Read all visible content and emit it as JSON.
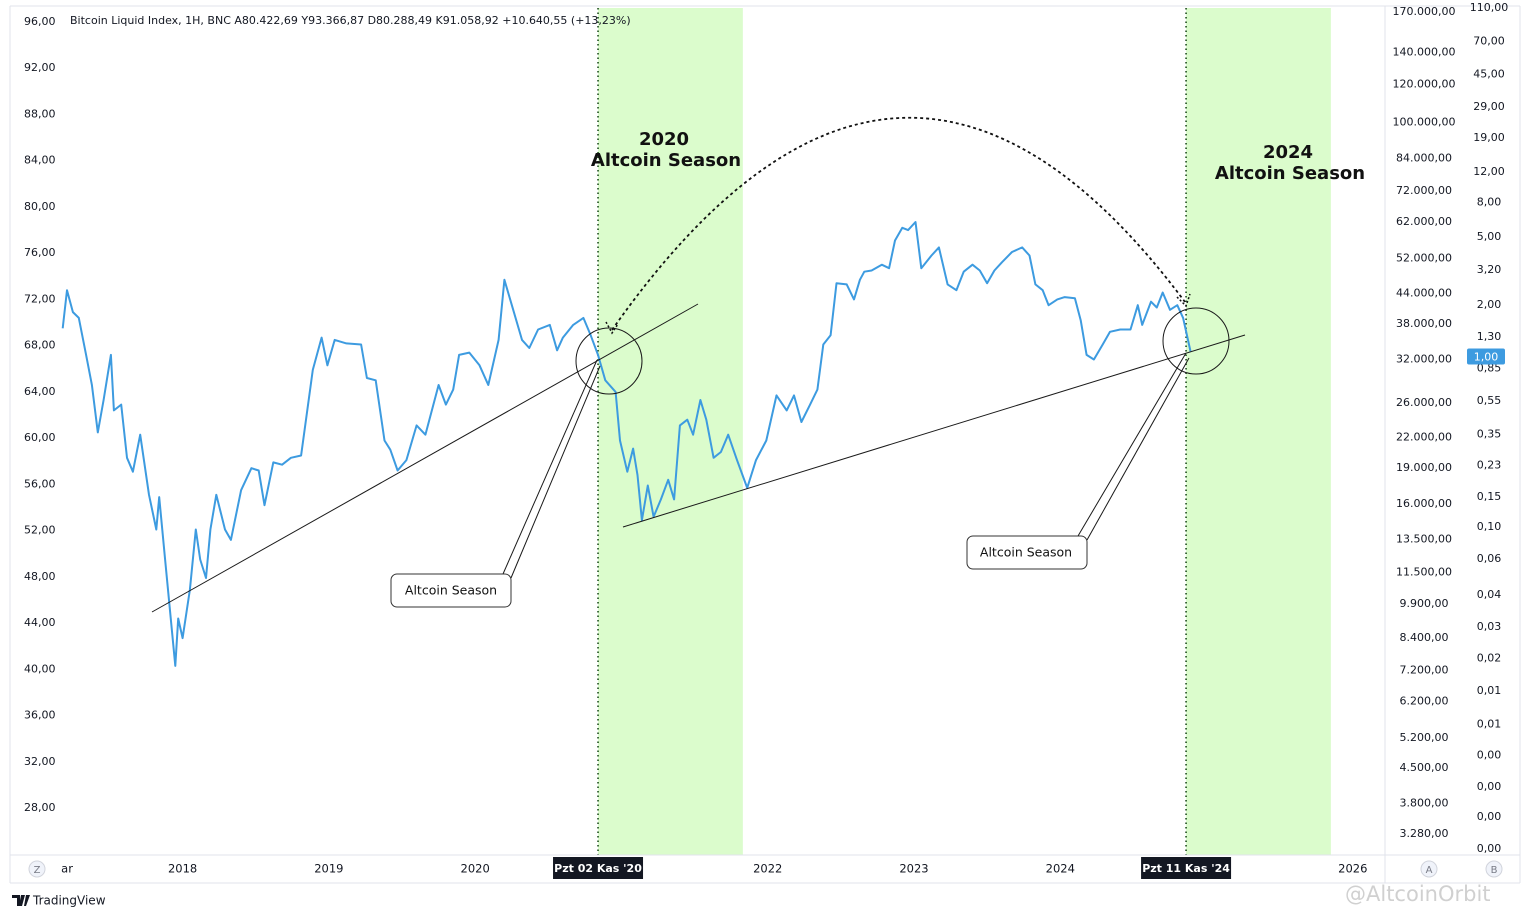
{
  "chart_data": {
    "type": "line",
    "legend_text": "Bitcoin Liquid Index, 1H, BNC  A80.422,69  Y93.366,87  D80.288,49  K91.058,92  +10.640,55 (+13,23%)",
    "color": "#3d9be0",
    "x": [
      2017.18,
      2017.21,
      2017.25,
      2017.29,
      2017.34,
      2017.38,
      2017.42,
      2017.46,
      2017.51,
      2017.53,
      2017.58,
      2017.62,
      2017.66,
      2017.71,
      2017.77,
      2017.82,
      2017.84,
      2017.88,
      2017.95,
      2017.97,
      2018.0,
      2018.05,
      2018.09,
      2018.12,
      2018.16,
      2018.19,
      2018.23,
      2018.29,
      2018.33,
      2018.4,
      2018.47,
      2018.52,
      2018.56,
      2018.62,
      2018.68,
      2018.74,
      2018.81,
      2018.89,
      2018.95,
      2018.99,
      2019.04,
      2019.12,
      2019.22,
      2019.26,
      2019.32,
      2019.38,
      2019.42,
      2019.47,
      2019.53,
      2019.6,
      2019.66,
      2019.75,
      2019.8,
      2019.85,
      2019.89,
      2019.96,
      2020.03,
      2020.09,
      2020.16,
      2020.2,
      2020.26,
      2020.32,
      2020.37,
      2020.43,
      2020.51,
      2020.56,
      2020.6,
      2020.67,
      2020.74,
      2020.79,
      2020.84,
      2020.89,
      2020.96,
      2020.99,
      2021.04,
      2021.08,
      2021.11,
      2021.14,
      2021.18,
      2021.22,
      2021.27,
      2021.32,
      2021.36,
      2021.4,
      2021.45,
      2021.49,
      2021.54,
      2021.58,
      2021.63,
      2021.68,
      2021.73,
      2021.79,
      2021.86,
      2021.92,
      2021.99,
      2022.06,
      2022.13,
      2022.18,
      2022.23,
      2022.29,
      2022.34,
      2022.38,
      2022.43,
      2022.47,
      2022.54,
      2022.59,
      2022.63,
      2022.66,
      2022.71,
      2022.78,
      2022.83,
      2022.87,
      2022.92,
      2022.96,
      2023.01,
      2023.05,
      2023.12,
      2023.17,
      2023.23,
      2023.29,
      2023.34,
      2023.4,
      2023.45,
      2023.5,
      2023.55,
      2023.6,
      2023.67,
      2023.74,
      2023.79,
      2023.83,
      2023.88,
      2023.92,
      2023.98,
      2024.03,
      2024.1,
      2024.14,
      2024.18,
      2024.23,
      2024.29,
      2024.34,
      2024.41,
      2024.48,
      2024.53,
      2024.56,
      2024.62,
      2024.66,
      2024.7,
      2024.75,
      2024.8,
      2024.84,
      2024.89
    ],
    "values": [
      69.5,
      72.8,
      70.9,
      70.4,
      67.2,
      64.6,
      60.5,
      63.3,
      67.2,
      62.4,
      62.9,
      58.3,
      57.1,
      60.3,
      55.1,
      52.1,
      54.9,
      49.5,
      40.3,
      44.4,
      42.7,
      46.9,
      52.1,
      49.5,
      47.9,
      52.1,
      55.1,
      52.1,
      51.2,
      55.5,
      57.4,
      57.2,
      54.2,
      57.9,
      57.7,
      58.3,
      58.5,
      65.9,
      68.7,
      66.3,
      68.5,
      68.2,
      68.1,
      65.2,
      65.0,
      59.8,
      59.0,
      57.2,
      58.1,
      61.1,
      60.3,
      64.6,
      62.9,
      64.2,
      67.2,
      67.4,
      66.3,
      64.6,
      68.5,
      73.7,
      71.1,
      68.5,
      67.8,
      69.4,
      69.8,
      67.6,
      68.7,
      69.8,
      70.4,
      68.9,
      67.2,
      65.0,
      64.0,
      59.8,
      57.1,
      59.1,
      56.8,
      52.9,
      55.9,
      53.2,
      54.7,
      56.4,
      54.7,
      61.1,
      61.6,
      60.3,
      63.3,
      61.6,
      58.3,
      58.8,
      60.3,
      58.1,
      55.7,
      58.1,
      59.8,
      63.7,
      62.4,
      63.7,
      61.4,
      62.9,
      64.2,
      68.1,
      68.9,
      73.4,
      73.3,
      72.0,
      73.7,
      74.4,
      74.5,
      75.0,
      74.7,
      77.1,
      78.2,
      78.0,
      78.7,
      74.7,
      75.8,
      76.5,
      73.3,
      72.8,
      74.4,
      75.0,
      74.5,
      73.4,
      74.5,
      75.2,
      76.1,
      76.5,
      75.8,
      73.3,
      72.8,
      71.5,
      72.0,
      72.2,
      72.1,
      70.2,
      67.2,
      66.8,
      68.1,
      69.2,
      69.4,
      69.4,
      71.5,
      69.8,
      71.8,
      71.3,
      72.6,
      71.1,
      71.5,
      70.4,
      67.5
    ],
    "xlim": [
      2016.82,
      2026.22
    ],
    "xticks": [
      {
        "value": 2017.21,
        "label": "ar"
      },
      2018,
      2019,
      2020,
      2022,
      2023,
      2024,
      2026
    ],
    "crosshair_ticks": [
      {
        "value": 2020.84,
        "label": "Pzt 02 Kas '20"
      },
      {
        "value": 2024.86,
        "label": "Pzt 11 Kas '24"
      }
    ],
    "ylim": [
      23.94,
      97.21
    ],
    "yticks": [
      {
        "value": 96,
        "label": "96,00"
      },
      {
        "value": 92,
        "label": "92,00"
      },
      {
        "value": 88,
        "label": "88,00"
      },
      {
        "value": 84,
        "label": "84,00"
      },
      {
        "value": 80,
        "label": "80,00"
      },
      {
        "value": 76,
        "label": "76,00"
      },
      {
        "value": 72,
        "label": "72,00"
      },
      {
        "value": 68,
        "label": "68,00"
      },
      {
        "value": 64,
        "label": "64,00"
      },
      {
        "value": 60,
        "label": "60,00"
      },
      {
        "value": 56,
        "label": "56,00"
      },
      {
        "value": 52,
        "label": "52,00"
      },
      {
        "value": 48,
        "label": "48,00"
      },
      {
        "value": 44,
        "label": "44,00"
      },
      {
        "value": 40,
        "label": "40,00"
      },
      {
        "value": 36,
        "label": "36,00"
      },
      {
        "value": 32,
        "label": "32,00"
      },
      {
        "value": 28,
        "label": "28,00"
      }
    ],
    "y2lim": [
      2965,
      173200
    ],
    "y2log": true,
    "y2ticks": [
      {
        "value": 170000,
        "label": "170.000,00"
      },
      {
        "value": 140000,
        "label": "140.000,00"
      },
      {
        "value": 120000,
        "label": "120.000,00"
      },
      {
        "value": 100000,
        "label": "100.000,00"
      },
      {
        "value": 84000,
        "label": "84.000,00"
      },
      {
        "value": 72000,
        "label": "72.000,00"
      },
      {
        "value": 62000,
        "label": "62.000,00"
      },
      {
        "value": 52000,
        "label": "52.000,00"
      },
      {
        "value": 44000,
        "label": "44.000,00"
      },
      {
        "value": 38000,
        "label": "38.000,00"
      },
      {
        "value": 32000,
        "label": "32.000,00"
      },
      {
        "value": 26000,
        "label": "26.000,00"
      },
      {
        "value": 22000,
        "label": "22.000,00"
      },
      {
        "value": 19000,
        "label": "19.000,00"
      },
      {
        "value": 16000,
        "label": "16.000,00"
      },
      {
        "value": 13500,
        "label": "13.500,00"
      },
      {
        "value": 11500,
        "label": "11.500,00"
      },
      {
        "value": 9900,
        "label": "9.900,00"
      },
      {
        "value": 8400,
        "label": "8.400,00"
      },
      {
        "value": 7200,
        "label": "7.200,00"
      },
      {
        "value": 6200,
        "label": "6.200,00"
      },
      {
        "value": 5200,
        "label": "5.200,00"
      },
      {
        "value": 4500,
        "label": "4.500,00"
      },
      {
        "value": 3800,
        "label": "3.800,00"
      },
      {
        "value": 3280,
        "label": "3.280,00"
      }
    ],
    "y3lim": [
      0.0012,
      110
    ],
    "y3log": true,
    "y3ticks": [
      {
        "value": 110,
        "label": "110,00"
      },
      {
        "value": 70,
        "label": "70,00"
      },
      {
        "value": 45,
        "label": "45,00"
      },
      {
        "value": 29,
        "label": "29,00"
      },
      {
        "value": 19,
        "label": "19,00"
      },
      {
        "value": 12,
        "label": "12,00"
      },
      {
        "value": 8,
        "label": "8,00"
      },
      {
        "value": 5,
        "label": "5,00"
      },
      {
        "value": 3.2,
        "label": "3,20"
      },
      {
        "value": 2,
        "label": "2,00"
      },
      {
        "value": 1.3,
        "label": "1,30"
      },
      {
        "value": 0.85,
        "label": "0,85"
      },
      {
        "value": 0.55,
        "label": "0,55"
      },
      {
        "value": 0.35,
        "label": "0,35"
      },
      {
        "value": 0.23,
        "label": "0,23"
      },
      {
        "value": 0.15,
        "label": "0,15"
      },
      {
        "value": 0.1,
        "label": "0,10"
      },
      {
        "value": 0.065,
        "label": "0,06"
      },
      {
        "value": 0.04,
        "label": "0,04"
      },
      {
        "value": 0.026,
        "label": "0,03"
      },
      {
        "value": 0.017,
        "label": "0,02"
      },
      {
        "value": 0.011,
        "label": "0,01"
      },
      {
        "value": 0.007,
        "label": "0,01"
      },
      {
        "value": 0.0046,
        "label": "0,00"
      },
      {
        "value": 0.003,
        "label": "0,00"
      },
      {
        "value": 0.002,
        "label": "0,00"
      },
      {
        "value": 0.0013,
        "label": "0,00"
      }
    ],
    "y3_last_value": {
      "value": 1,
      "label": "1,00"
    },
    "highlight_ranges": [
      [
        2020.84,
        2021.83
      ],
      [
        2024.86,
        2025.85
      ]
    ],
    "highlight_color": "#dbfccc",
    "season_titles": [
      [
        "2020",
        "Altcoin Season"
      ],
      [
        "2024",
        "Altcoin Season"
      ]
    ],
    "callouts": [
      "Altcoin Season",
      "Altcoin Season"
    ],
    "scale_buttons": [
      "Z",
      "A",
      "B"
    ],
    "brand": "TradingView",
    "watermark": "@AltcoinOrbit"
  }
}
